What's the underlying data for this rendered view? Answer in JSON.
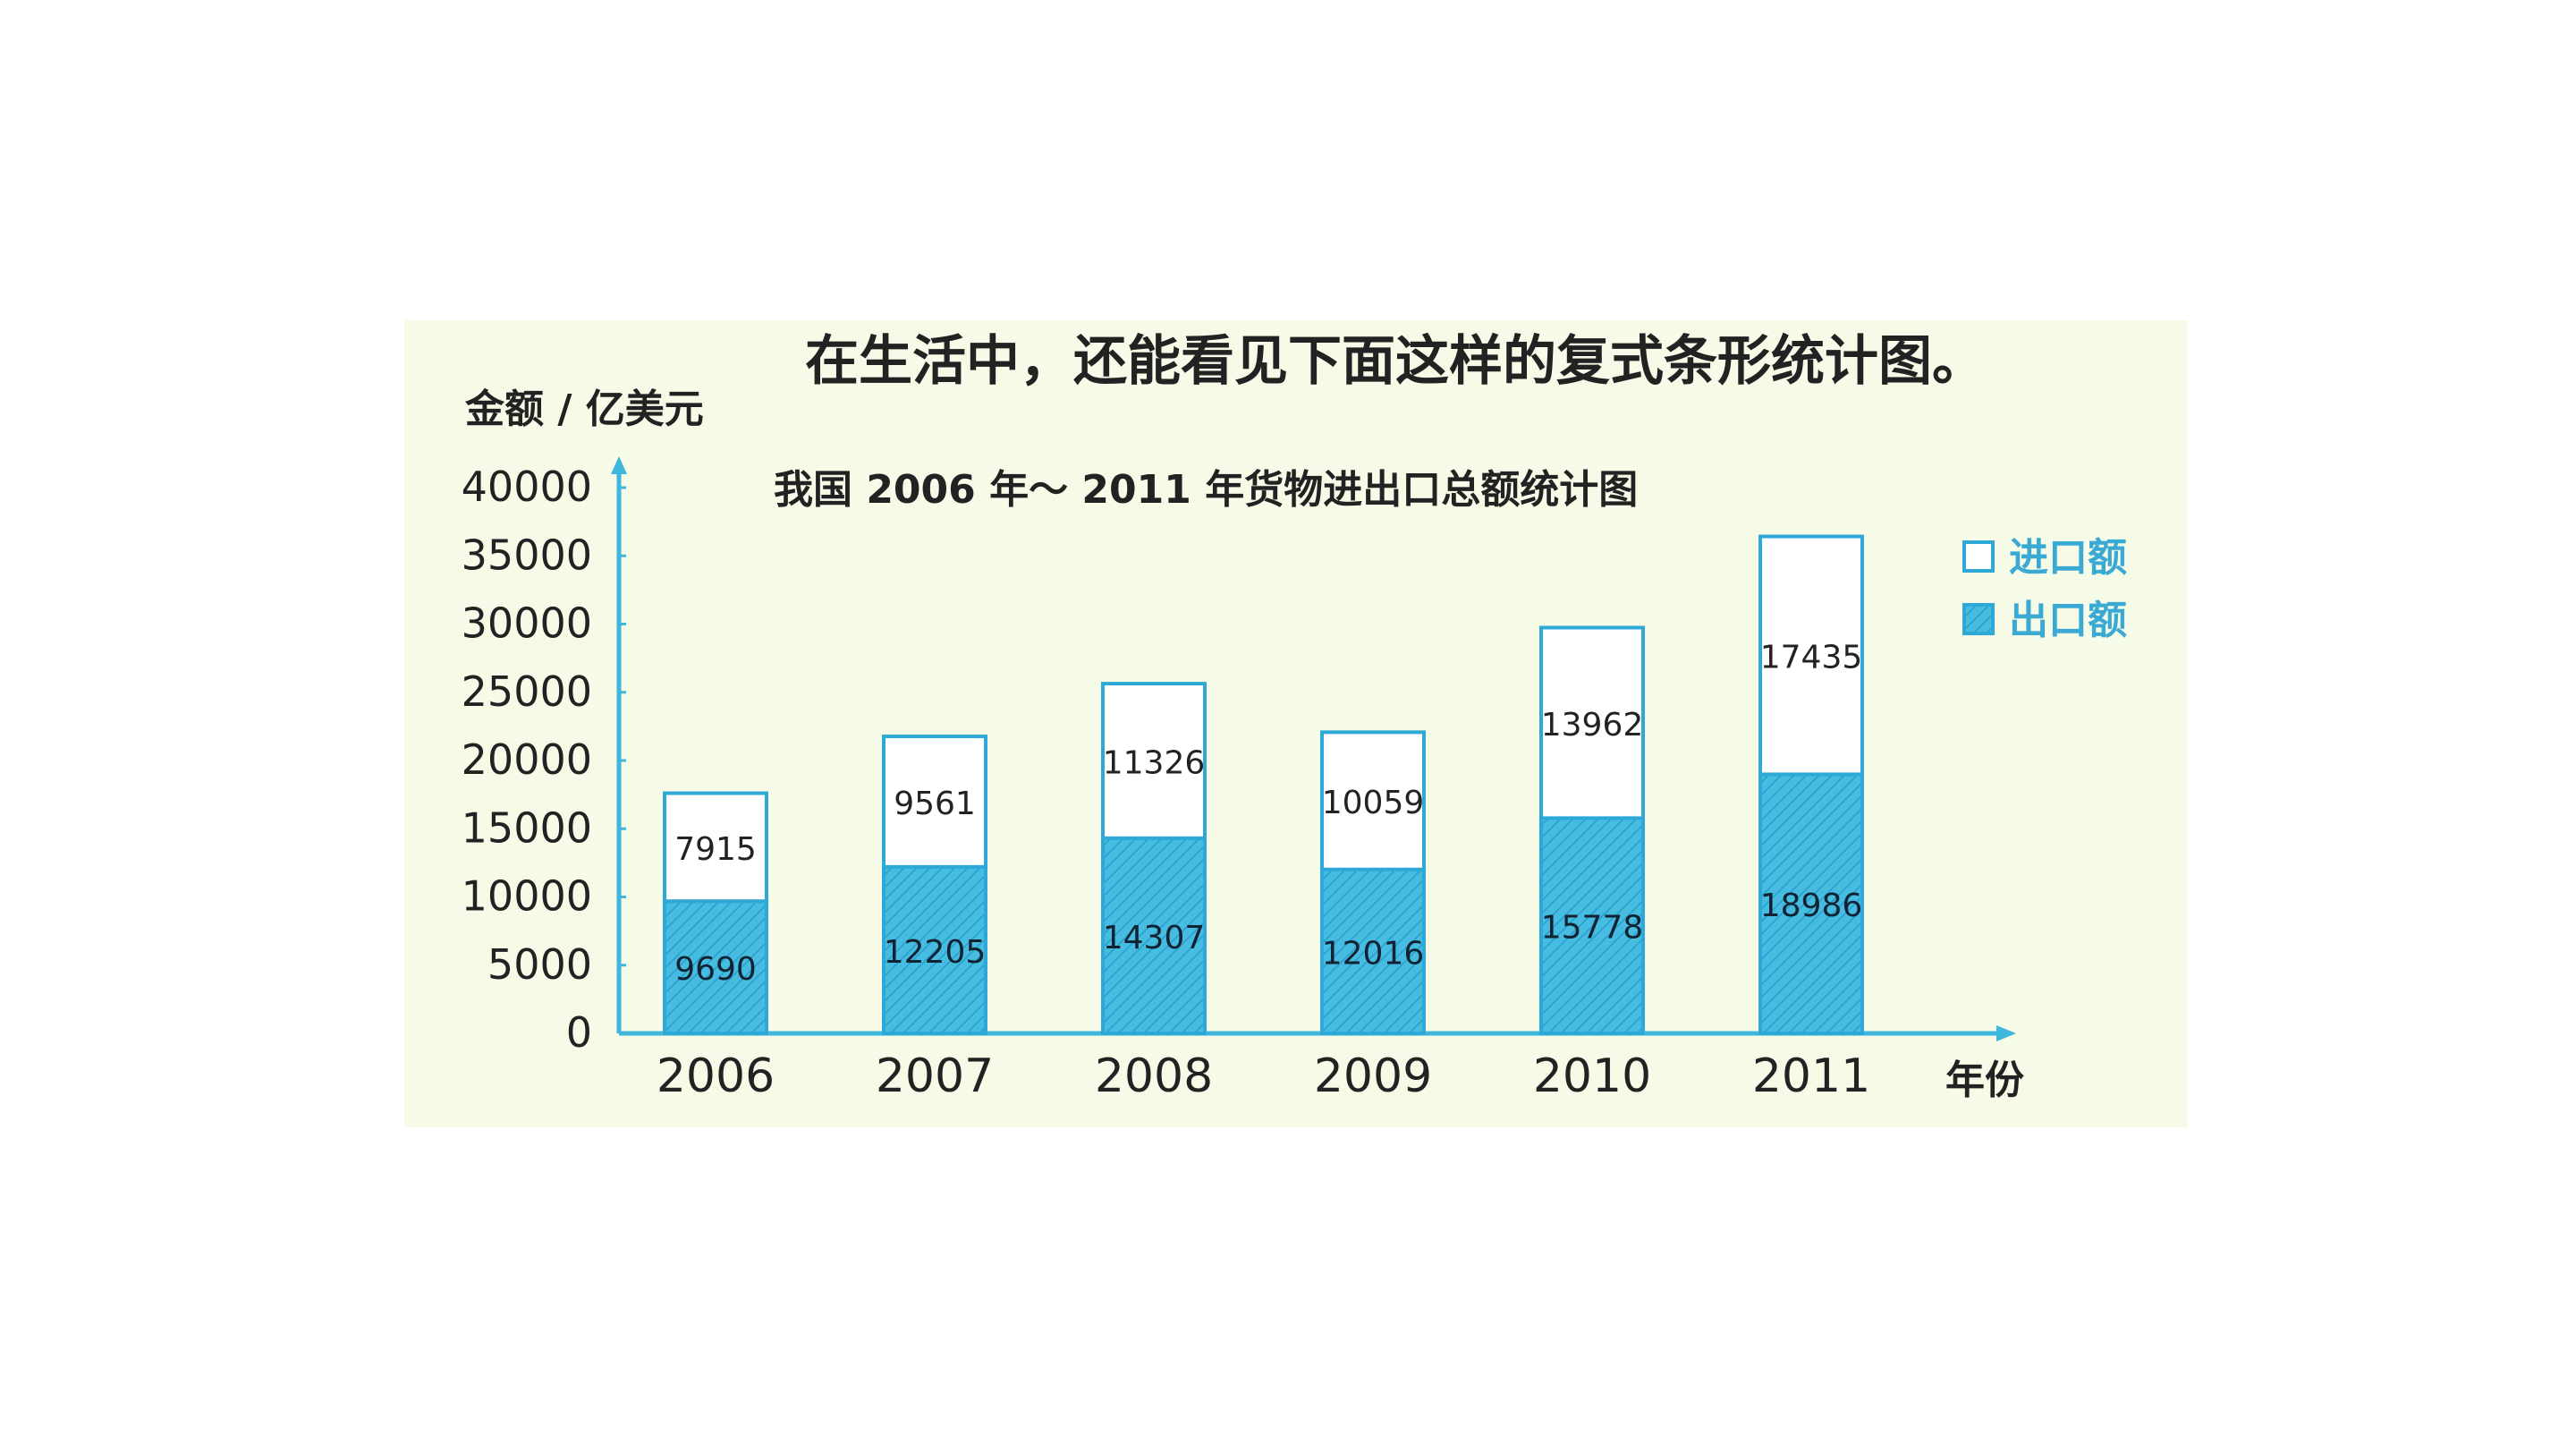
{
  "heading": "在生活中，还能看见下面这样的复式条形统计图。",
  "chart_data": {
    "type": "bar",
    "stacked": true,
    "title": "我国 2006 年～ 2011 年货物进出口总额统计图",
    "ylabel": "金额 / 亿美元",
    "xlabel": "年份",
    "categories": [
      "2006",
      "2007",
      "2008",
      "2009",
      "2010",
      "2011"
    ],
    "yticks": [
      "0",
      "5000",
      "10000",
      "15000",
      "20000",
      "25000",
      "30000",
      "35000",
      "40000"
    ],
    "ylim": [
      0,
      40000
    ],
    "series": [
      {
        "name": "出口额",
        "values": [
          9690,
          12205,
          14307,
          12016,
          15778,
          18986
        ],
        "color": "#3fb6dc"
      },
      {
        "name": "进口额",
        "values": [
          7915,
          9561,
          11326,
          10059,
          13962,
          17435
        ],
        "color": "#ffffff"
      }
    ],
    "legend": {
      "position": "top-right",
      "items": [
        {
          "label": "进口额",
          "color": "#ffffff"
        },
        {
          "label": "出口额",
          "color": "#3fb6dc"
        }
      ]
    },
    "grid": false,
    "colors": {
      "background": "#f6fbe8",
      "axis": "#3fb6dc",
      "bar_outline": "#2ea8d6"
    }
  }
}
